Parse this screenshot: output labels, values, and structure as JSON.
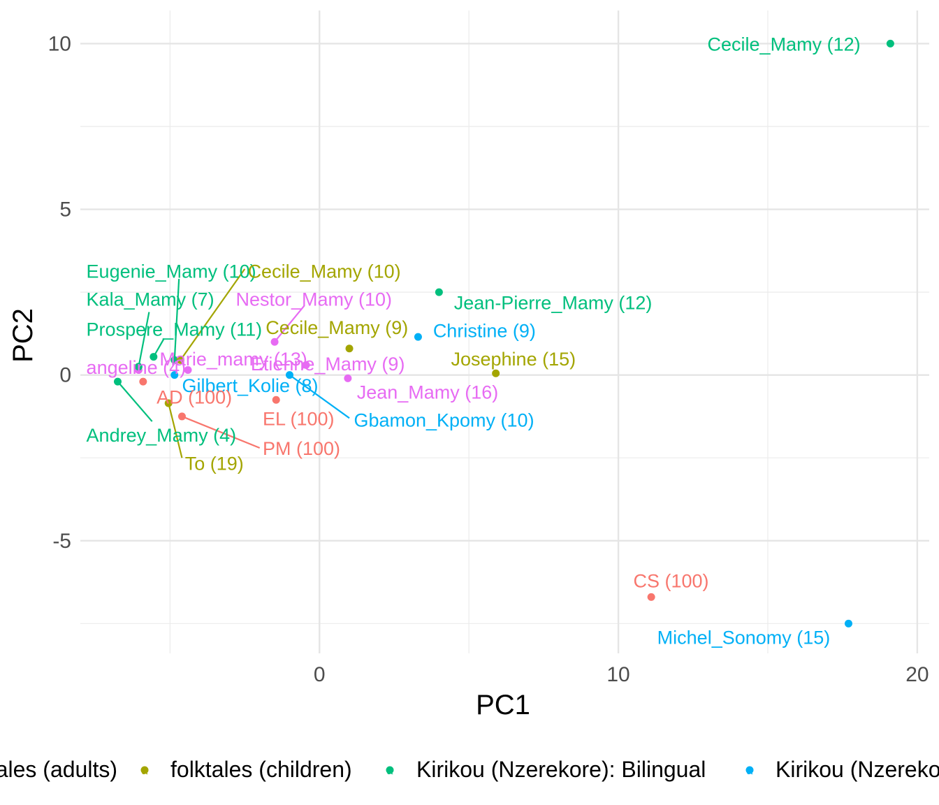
{
  "chart_data": {
    "type": "scatter",
    "title": "",
    "xlabel": "PC1",
    "ylabel": "PC2",
    "xlim": [
      -8,
      20.4
    ],
    "ylim": [
      -8.4,
      11
    ],
    "x_ticks": [
      0,
      10,
      20
    ],
    "x_tick_labels": [
      "0",
      "10",
      "20"
    ],
    "y_ticks": [
      -5,
      0,
      5,
      10
    ],
    "y_tick_labels": [
      "-5",
      "0",
      "5",
      "10"
    ],
    "grid": true,
    "legend_position": "bottom",
    "groups": [
      {
        "name": "folktales (adults)",
        "color": "#F8766D",
        "legend_label": "tales (adults)"
      },
      {
        "name": "folktales (children)",
        "color": "#A3A500",
        "legend_label": "folktales (children)"
      },
      {
        "name": "Kirikou (Nzerekore): Bilingual",
        "color": "#00BF7D",
        "legend_label": "Kirikou (Nzerekore): Bilingual"
      },
      {
        "name": "Kirikou (Nzerekore)",
        "color": "#00B0F6",
        "legend_label": "Kirikou (Nzereko"
      },
      {
        "name": "",
        "color": "#E76BF3",
        "legend_label": ""
      }
    ],
    "points": [
      {
        "label": "Cecile_Mamy (12)",
        "group": 2,
        "x": 19.1,
        "y": 10.0,
        "lx": 18.1,
        "ly": 10.0,
        "anchor": "end"
      },
      {
        "label": "CS (100)",
        "group": 0,
        "x": 11.1,
        "y": -6.7,
        "lx": 10.5,
        "ly": -6.2,
        "anchor": "start"
      },
      {
        "label": "Michel_Sonomy (15)",
        "group": 3,
        "x": 17.7,
        "y": -7.5,
        "lx": 11.3,
        "ly": -7.9,
        "anchor": "start"
      },
      {
        "label": "Jean-Pierre_Mamy (12)",
        "group": 2,
        "x": 4.0,
        "y": 2.5,
        "lx": 4.5,
        "ly": 2.2,
        "anchor": "start"
      },
      {
        "label": "Christine (9)",
        "group": 3,
        "x": 3.3,
        "y": 1.15,
        "lx": 3.8,
        "ly": 1.35,
        "anchor": "start"
      },
      {
        "label": "Josephine (15)",
        "group": 1,
        "x": 5.9,
        "y": 0.05,
        "lx": 4.4,
        "ly": 0.5,
        "anchor": "start"
      },
      {
        "label": "Cecile_Mamy (9)",
        "group": 1,
        "x": 1.0,
        "y": 0.8,
        "lx": -1.8,
        "ly": 1.45,
        "anchor": "start"
      },
      {
        "label": "Jean_Mamy (16)",
        "group": 4,
        "x": 0.95,
        "y": -0.1,
        "lx": 1.25,
        "ly": -0.5,
        "anchor": "start"
      },
      {
        "label": "Etienne_Mamy (9)",
        "group": 4,
        "x": -0.45,
        "y": 0.3,
        "lx": -2.3,
        "ly": 0.35,
        "anchor": "start"
      },
      {
        "label": "Nestor_Mamy (10)",
        "group": 4,
        "x": -1.5,
        "y": 1.0,
        "lx": -2.8,
        "ly": 2.3,
        "anchor": "start",
        "line": true,
        "lineTo": [
          -0.5,
          2.1
        ]
      },
      {
        "label": "Gbamon_Kpomy (10)",
        "group": 3,
        "x": -1.0,
        "y": 0.0,
        "lx": 1.15,
        "ly": -1.35,
        "anchor": "start",
        "line": true,
        "lineTo": [
          1.0,
          -1.3
        ]
      },
      {
        "label": "EL (100)",
        "group": 0,
        "x": -1.45,
        "y": -0.75,
        "lx": -1.9,
        "ly": -1.3,
        "anchor": "start"
      },
      {
        "label": "PM (100)",
        "group": 0,
        "x": -4.6,
        "y": -1.25,
        "lx": -1.9,
        "ly": -2.2,
        "anchor": "start",
        "line": true,
        "lineTo": [
          -2.0,
          -2.2
        ]
      },
      {
        "label": "Gilbert_Kolie (8)",
        "group": 3,
        "x": -4.85,
        "y": 0.0,
        "lx": -4.6,
        "ly": -0.3,
        "anchor": "start"
      },
      {
        "label": "AD (100)",
        "group": 0,
        "x": -5.9,
        "y": -0.2,
        "lx": -5.45,
        "ly": -0.65,
        "anchor": "start"
      },
      {
        "label": "To (19)",
        "group": 1,
        "x": -5.05,
        "y": -0.85,
        "lx": -4.5,
        "ly": -2.65,
        "anchor": "start",
        "line": true,
        "lineTo": [
          -4.6,
          -2.5
        ]
      },
      {
        "label": "Andrey_Mamy (4)",
        "group": 2,
        "x": -6.75,
        "y": -0.2,
        "lx": -7.8,
        "ly": -1.8,
        "anchor": "start",
        "line": true,
        "lineTo": [
          -5.6,
          -1.4
        ]
      },
      {
        "label": "angeline (4)",
        "group": 4,
        "x": -6.05,
        "y": 0.15,
        "lx": -7.8,
        "ly": 0.25,
        "anchor": "start"
      },
      {
        "label": "Marie_mamy (13)",
        "group": 4,
        "x": -4.4,
        "y": 0.15,
        "lx": -5.35,
        "ly": 0.5,
        "anchor": "start"
      },
      {
        "label": "Prospere_Mamy (11)",
        "group": 2,
        "x": -5.55,
        "y": 0.55,
        "lx": -7.8,
        "ly": 1.4,
        "anchor": "start",
        "line": true,
        "lineTo": [
          -5.2,
          1.1
        ]
      },
      {
        "label": "Kala_Mamy (7)",
        "group": 2,
        "x": -6.05,
        "y": 0.25,
        "lx": -7.8,
        "ly": 2.3,
        "anchor": "start",
        "line": true,
        "lineTo": [
          -5.7,
          1.9
        ]
      },
      {
        "label": "Eugenie_Mamy (10)",
        "group": 2,
        "x": -4.85,
        "y": 0.45,
        "lx": -7.8,
        "ly": 3.15,
        "anchor": "start",
        "line": true,
        "lineTo": [
          -4.7,
          2.9
        ]
      },
      {
        "label": "Cecile_Mamy (10)",
        "group": 1,
        "x": -4.65,
        "y": 0.45,
        "lx": -2.4,
        "ly": 3.15,
        "anchor": "start",
        "line": true,
        "lineTo": [
          -2.5,
          3.2
        ]
      }
    ]
  }
}
